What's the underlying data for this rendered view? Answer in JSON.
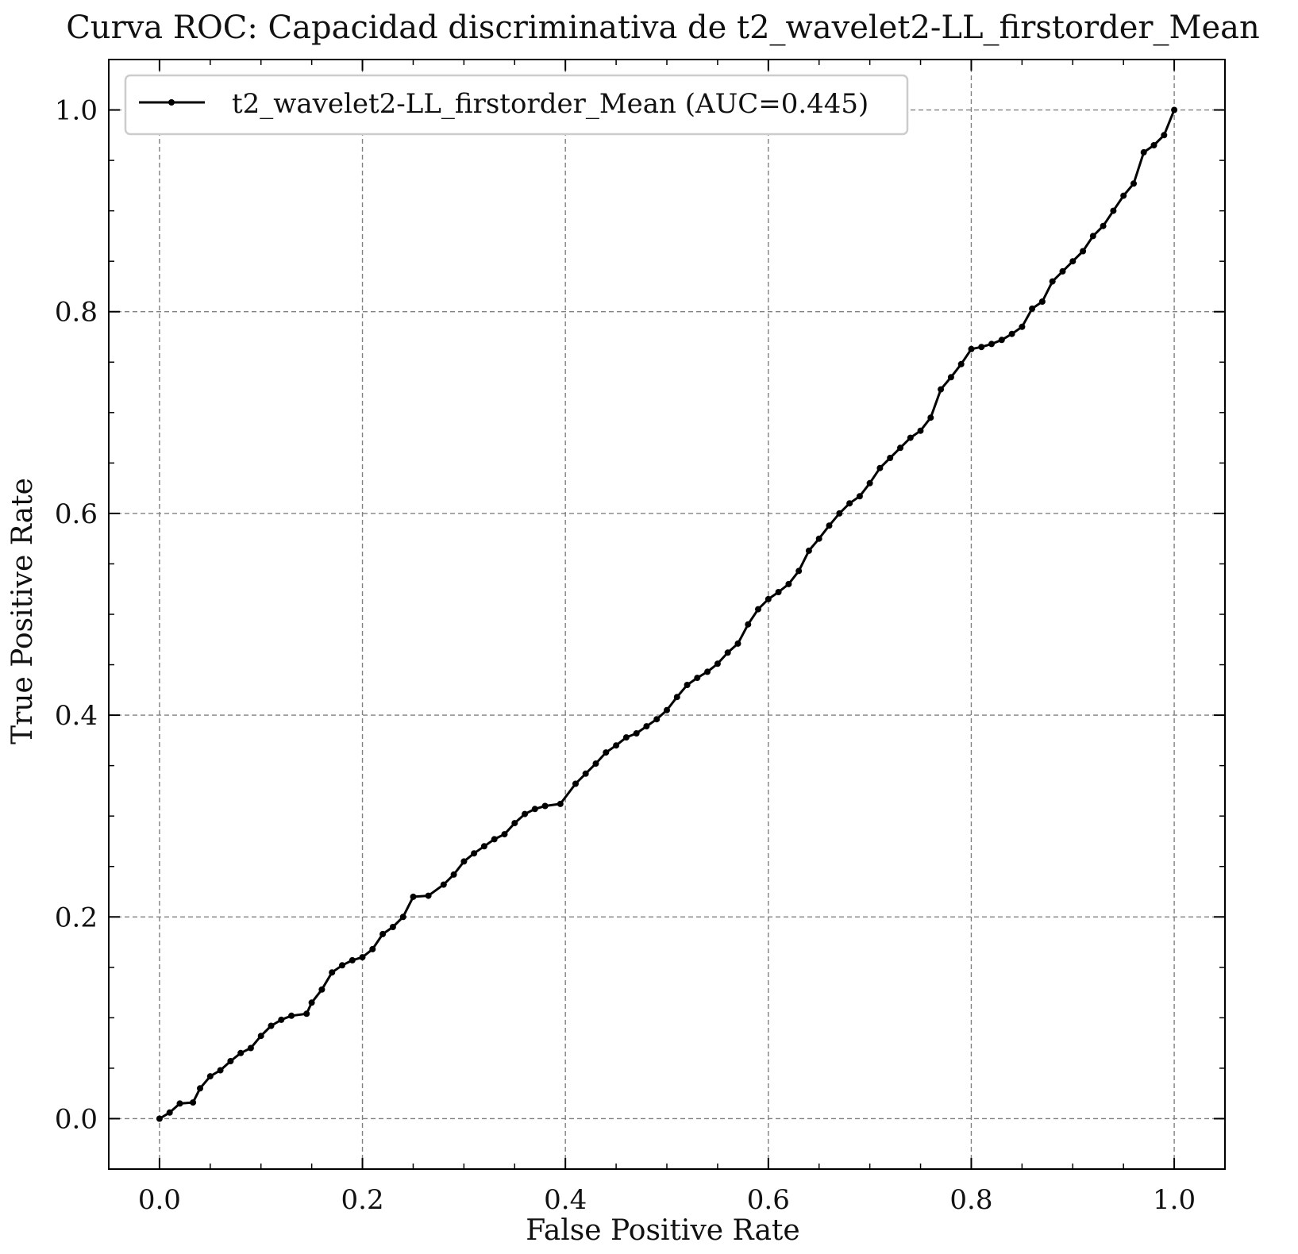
{
  "chart_data": {
    "type": "line",
    "title": "Curva ROC: Capacidad discriminativa de t2_wavelet2-LL_firstorder_Mean",
    "xlabel": "False Positive Rate",
    "ylabel": "True Positive Rate",
    "xlim": [
      -0.05,
      1.05
    ],
    "ylim": [
      -0.05,
      1.05
    ],
    "xticks": [
      "0.0",
      "0.2",
      "0.4",
      "0.6",
      "0.8",
      "1.0"
    ],
    "yticks": [
      "0.0",
      "0.2",
      "0.4",
      "0.6",
      "0.8",
      "1.0"
    ],
    "grid": true,
    "legend_position": "upper-left",
    "colors": {
      "line": "#000000",
      "grid": "#808080",
      "axes": "#000000"
    },
    "series": [
      {
        "name": "t2_wavelet2-LL_firstorder_Mean (AUC=0.445)",
        "marker": "point",
        "x": [
          0.0,
          0.01,
          0.02,
          0.033,
          0.04,
          0.05,
          0.06,
          0.07,
          0.08,
          0.09,
          0.1,
          0.11,
          0.12,
          0.13,
          0.145,
          0.15,
          0.16,
          0.17,
          0.18,
          0.19,
          0.2,
          0.21,
          0.22,
          0.23,
          0.24,
          0.25,
          0.265,
          0.28,
          0.29,
          0.3,
          0.31,
          0.32,
          0.33,
          0.34,
          0.35,
          0.36,
          0.37,
          0.38,
          0.395,
          0.41,
          0.42,
          0.43,
          0.44,
          0.45,
          0.46,
          0.47,
          0.48,
          0.49,
          0.5,
          0.51,
          0.52,
          0.53,
          0.54,
          0.55,
          0.56,
          0.57,
          0.58,
          0.59,
          0.6,
          0.61,
          0.62,
          0.63,
          0.64,
          0.65,
          0.66,
          0.67,
          0.68,
          0.69,
          0.7,
          0.71,
          0.72,
          0.73,
          0.74,
          0.75,
          0.76,
          0.77,
          0.78,
          0.79,
          0.8,
          0.81,
          0.82,
          0.83,
          0.84,
          0.85,
          0.86,
          0.87,
          0.88,
          0.89,
          0.9,
          0.91,
          0.92,
          0.93,
          0.94,
          0.95,
          0.96,
          0.97,
          0.98,
          0.99,
          1.0
        ],
        "y": [
          0.0,
          0.006,
          0.015,
          0.016,
          0.03,
          0.042,
          0.048,
          0.057,
          0.065,
          0.07,
          0.082,
          0.092,
          0.098,
          0.102,
          0.104,
          0.115,
          0.128,
          0.145,
          0.152,
          0.157,
          0.16,
          0.168,
          0.183,
          0.19,
          0.2,
          0.22,
          0.221,
          0.232,
          0.242,
          0.255,
          0.263,
          0.27,
          0.277,
          0.282,
          0.293,
          0.302,
          0.307,
          0.31,
          0.312,
          0.332,
          0.342,
          0.352,
          0.363,
          0.37,
          0.378,
          0.382,
          0.389,
          0.396,
          0.405,
          0.418,
          0.43,
          0.437,
          0.443,
          0.451,
          0.462,
          0.471,
          0.49,
          0.505,
          0.515,
          0.522,
          0.53,
          0.543,
          0.563,
          0.575,
          0.588,
          0.6,
          0.61,
          0.617,
          0.63,
          0.645,
          0.655,
          0.665,
          0.675,
          0.682,
          0.695,
          0.723,
          0.735,
          0.748,
          0.763,
          0.765,
          0.768,
          0.772,
          0.778,
          0.785,
          0.803,
          0.81,
          0.83,
          0.84,
          0.85,
          0.86,
          0.875,
          0.885,
          0.9,
          0.915,
          0.927,
          0.958,
          0.965,
          0.975,
          1.0
        ]
      }
    ]
  }
}
